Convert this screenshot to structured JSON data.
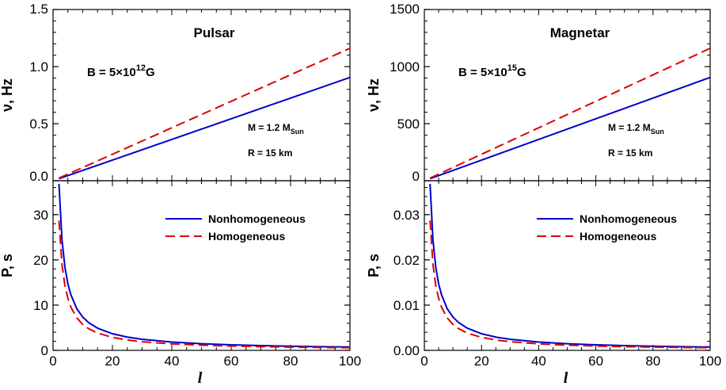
{
  "chart_data": [
    {
      "type": "line",
      "panel": "top-left",
      "title": "Pulsar",
      "annotation_B": {
        "prefix": "B = 5×10",
        "exp": "12",
        "suffix": "G"
      },
      "annotation_M": {
        "prefix": "M = 1.2 M",
        "sub": "Sun"
      },
      "annotation_R": "R = 15 km",
      "xlabel": "",
      "ylabel": "ν, Hz",
      "xlim": [
        0,
        100
      ],
      "ylim": [
        0,
        1.5
      ],
      "yticks": [
        "0.0",
        "0.5",
        "1.0",
        "1.5"
      ],
      "grid": false,
      "series": [
        {
          "name": "Nonhomogeneous",
          "color": "#0000cc",
          "dash": "solid",
          "x": [
            2,
            100
          ],
          "y": [
            0.018,
            0.905
          ]
        },
        {
          "name": "Homogeneous",
          "color": "#dd0000",
          "dash": "dashed",
          "x": [
            2,
            100
          ],
          "y": [
            0.023,
            1.16
          ]
        }
      ]
    },
    {
      "type": "line",
      "panel": "bottom-left",
      "xlabel": "l",
      "ylabel": "P, s",
      "xlim": [
        0,
        100
      ],
      "ylim": [
        0,
        37.5
      ],
      "xticks": [
        "0",
        "20",
        "40",
        "60",
        "80",
        "100"
      ],
      "yticks": [
        "0",
        "10",
        "20",
        "30"
      ],
      "legend": "top-right",
      "grid": false,
      "series": [
        {
          "name": "Nonhomogeneous",
          "color": "#0000cc",
          "dash": "solid",
          "x": [
            2,
            3,
            4,
            5,
            6,
            8,
            10,
            12,
            15,
            20,
            25,
            30,
            40,
            50,
            60,
            70,
            80,
            90,
            100
          ],
          "y": [
            36.8,
            24.5,
            18.4,
            14.7,
            12.3,
            9.2,
            7.36,
            6.13,
            4.91,
            3.68,
            2.94,
            2.45,
            1.84,
            1.47,
            1.23,
            1.05,
            0.92,
            0.82,
            0.74
          ]
        },
        {
          "name": "Homogeneous",
          "color": "#dd0000",
          "dash": "dashed",
          "x": [
            2,
            3,
            4,
            5,
            6,
            8,
            10,
            12,
            15,
            20,
            25,
            30,
            40,
            50,
            60,
            70,
            80,
            90,
            100
          ],
          "y": [
            28.7,
            19.1,
            14.3,
            11.5,
            9.57,
            7.18,
            5.74,
            4.79,
            3.83,
            2.87,
            2.3,
            1.91,
            1.44,
            1.15,
            0.96,
            0.82,
            0.72,
            0.64,
            0.57
          ]
        }
      ]
    },
    {
      "type": "line",
      "panel": "top-right",
      "title": "Magnetar",
      "annotation_B": {
        "prefix": "B = 5×10",
        "exp": "15",
        "suffix": "G"
      },
      "annotation_M": {
        "prefix": "M = 1.2 M",
        "sub": "Sun"
      },
      "annotation_R": "R = 15 km",
      "xlabel": "",
      "ylabel": "ν, Hz",
      "xlim": [
        0,
        100
      ],
      "ylim": [
        0,
        1500
      ],
      "yticks": [
        "0",
        "500",
        "1000",
        "1500"
      ],
      "grid": false,
      "series": [
        {
          "name": "Nonhomogeneous",
          "color": "#0000cc",
          "dash": "solid",
          "x": [
            2,
            100
          ],
          "y": [
            18,
            905
          ]
        },
        {
          "name": "Homogeneous",
          "color": "#dd0000",
          "dash": "dashed",
          "x": [
            2,
            100
          ],
          "y": [
            23,
            1160
          ]
        }
      ]
    },
    {
      "type": "line",
      "panel": "bottom-right",
      "xlabel": "l",
      "ylabel": "P, s",
      "xlim": [
        0,
        100
      ],
      "ylim": [
        0,
        0.0375
      ],
      "xticks": [
        "0",
        "20",
        "40",
        "60",
        "80",
        "100"
      ],
      "yticks": [
        "0.00",
        "0.01",
        "0.02",
        "0.03"
      ],
      "legend": "top-right",
      "grid": false,
      "series": [
        {
          "name": "Nonhomogeneous",
          "color": "#0000cc",
          "dash": "solid",
          "x": [
            2,
            3,
            4,
            5,
            6,
            8,
            10,
            12,
            15,
            20,
            25,
            30,
            40,
            50,
            60,
            70,
            80,
            90,
            100
          ],
          "y": [
            0.0368,
            0.0245,
            0.0184,
            0.0147,
            0.0123,
            0.0092,
            0.00736,
            0.00613,
            0.00491,
            0.00368,
            0.00294,
            0.00245,
            0.00184,
            0.00147,
            0.00123,
            0.00105,
            0.00092,
            0.00082,
            0.00074
          ]
        },
        {
          "name": "Homogeneous",
          "color": "#dd0000",
          "dash": "dashed",
          "x": [
            2,
            3,
            4,
            5,
            6,
            8,
            10,
            12,
            15,
            20,
            25,
            30,
            40,
            50,
            60,
            70,
            80,
            90,
            100
          ],
          "y": [
            0.0287,
            0.0191,
            0.0143,
            0.0115,
            0.00957,
            0.00718,
            0.00574,
            0.00479,
            0.00383,
            0.00287,
            0.0023,
            0.00191,
            0.00144,
            0.00115,
            0.00096,
            0.00082,
            0.00072,
            0.00064,
            0.00057
          ]
        }
      ]
    }
  ]
}
